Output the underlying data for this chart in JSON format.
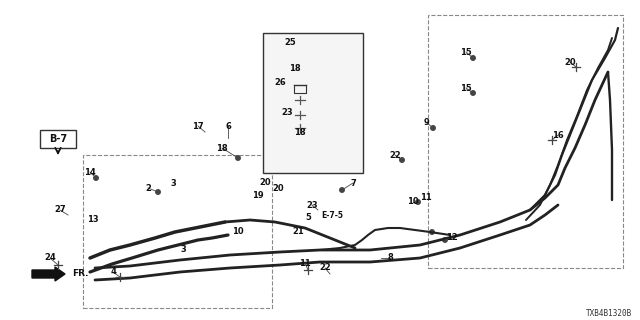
{
  "background_color": "#ffffff",
  "diagram_code": "TXB4B1320B",
  "labels": [
    [
      "25",
      290,
      42
    ],
    [
      "18",
      295,
      68
    ],
    [
      "26",
      280,
      82
    ],
    [
      "23",
      287,
      112
    ],
    [
      "18",
      300,
      132
    ],
    [
      "6",
      228,
      126
    ],
    [
      "17",
      198,
      126
    ],
    [
      "18",
      222,
      148
    ],
    [
      "14",
      90,
      172
    ],
    [
      "2",
      148,
      188
    ],
    [
      "3",
      173,
      183
    ],
    [
      "20",
      265,
      182
    ],
    [
      "20",
      278,
      188
    ],
    [
      "19",
      258,
      195
    ],
    [
      "7",
      353,
      183
    ],
    [
      "23",
      312,
      205
    ],
    [
      "E-7-5",
      332,
      215
    ],
    [
      "5",
      308,
      218
    ],
    [
      "10",
      238,
      232
    ],
    [
      "21",
      298,
      232
    ],
    [
      "13",
      93,
      220
    ],
    [
      "3",
      183,
      250
    ],
    [
      "11",
      305,
      263
    ],
    [
      "8",
      390,
      258
    ],
    [
      "22",
      325,
      268
    ],
    [
      "4",
      113,
      272
    ],
    [
      "24",
      50,
      258
    ],
    [
      "27",
      60,
      210
    ],
    [
      "9",
      426,
      122
    ],
    [
      "11",
      426,
      198
    ],
    [
      "10",
      413,
      202
    ],
    [
      "22",
      395,
      155
    ],
    [
      "12",
      452,
      238
    ],
    [
      "15",
      466,
      52
    ],
    [
      "15",
      466,
      88
    ],
    [
      "16",
      558,
      135
    ],
    [
      "20",
      570,
      62
    ]
  ],
  "leader_lines": [
    [
      222,
      148,
      238,
      158
    ],
    [
      228,
      126,
      228,
      138
    ],
    [
      353,
      183,
      342,
      190
    ],
    [
      312,
      205,
      318,
      210
    ],
    [
      305,
      263,
      308,
      270
    ],
    [
      390,
      258,
      381,
      258
    ],
    [
      325,
      268,
      330,
      274
    ],
    [
      426,
      122,
      433,
      128
    ],
    [
      413,
      202,
      418,
      202
    ],
    [
      395,
      155,
      402,
      160
    ],
    [
      452,
      238,
      445,
      240
    ],
    [
      466,
      52,
      473,
      58
    ],
    [
      466,
      88,
      473,
      93
    ],
    [
      558,
      135,
      552,
      140
    ],
    [
      570,
      62,
      576,
      67
    ],
    [
      50,
      258,
      58,
      265
    ],
    [
      60,
      210,
      68,
      215
    ],
    [
      90,
      172,
      96,
      178
    ],
    [
      113,
      272,
      120,
      277
    ],
    [
      198,
      126,
      205,
      132
    ],
    [
      148,
      188,
      158,
      192
    ]
  ],
  "hose_color": "#222222",
  "lw_hose": 2.0
}
